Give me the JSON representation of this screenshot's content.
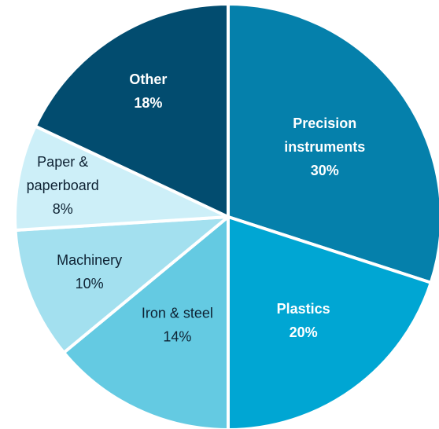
{
  "chart_data": {
    "type": "pie",
    "title": "",
    "slices": [
      {
        "label_lines": [
          "Precision",
          "instruments"
        ],
        "pct_label": "30%",
        "value": 30,
        "color": "#0580AB",
        "text_color": "#ffffff",
        "bold": true
      },
      {
        "label_lines": [
          "Plastics"
        ],
        "pct_label": "20%",
        "value": 20,
        "color": "#00A6D3",
        "text_color": "#ffffff",
        "bold": true
      },
      {
        "label_lines": [
          "Iron & steel"
        ],
        "pct_label": "14%",
        "value": 14,
        "color": "#64CAE2",
        "text_color": "#0e2233",
        "bold": false
      },
      {
        "label_lines": [
          "Machinery"
        ],
        "pct_label": "10%",
        "value": 10,
        "color": "#A3E0EF",
        "text_color": "#0e2233",
        "bold": false
      },
      {
        "label_lines": [
          "Paper &",
          "paperboard"
        ],
        "pct_label": "8%",
        "value": 8,
        "color": "#CDEFF8",
        "text_color": "#0e2233",
        "bold": false
      },
      {
        "label_lines": [
          "Other"
        ],
        "pct_label": "18%",
        "value": 18,
        "color": "#024C6F",
        "text_color": "#ffffff",
        "bold": true
      }
    ]
  }
}
